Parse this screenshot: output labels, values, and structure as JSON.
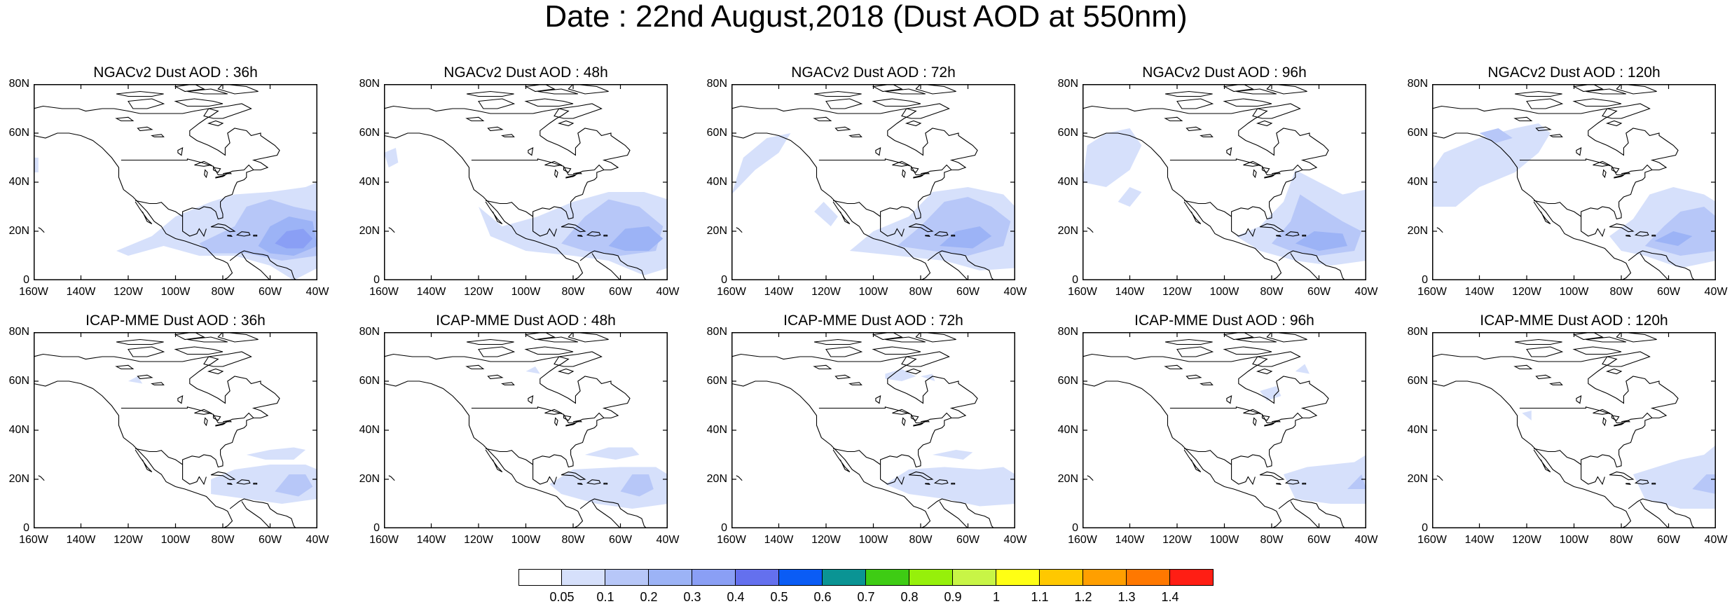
{
  "title": "Date : 22nd August,2018 (Dust AOD at 550nm)",
  "panels": [
    {
      "title": "NGACv2 Dust AOD : 36h"
    },
    {
      "title": "NGACv2 Dust AOD : 48h"
    },
    {
      "title": "NGACv2 Dust AOD : 72h"
    },
    {
      "title": "NGACv2 Dust AOD : 96h"
    },
    {
      "title": "NGACv2 Dust AOD : 120h"
    },
    {
      "title": "ICAP-MME Dust AOD : 36h"
    },
    {
      "title": "ICAP-MME Dust AOD : 48h"
    },
    {
      "title": "ICAP-MME Dust AOD : 72h"
    },
    {
      "title": "ICAP-MME Dust AOD : 96h"
    },
    {
      "title": "ICAP-MME Dust AOD : 120h"
    }
  ],
  "lat_ticks": [
    "80N",
    "60N",
    "40N",
    "20N",
    "0"
  ],
  "lon_ticks": [
    "160W",
    "140W",
    "120W",
    "100W",
    "80W",
    "60W",
    "40W"
  ],
  "colorbar": {
    "labels": [
      "0.05",
      "0.1",
      "0.2",
      "0.3",
      "0.4",
      "0.5",
      "0.6",
      "0.7",
      "0.8",
      "0.9",
      "1",
      "1.1",
      "1.2",
      "1.3",
      "1.4"
    ],
    "colors": [
      "#ffffff",
      "#d6e0fb",
      "#b7c7f8",
      "#9cb3f6",
      "#8a9ff5",
      "#6470ee",
      "#0a5cf5",
      "#0a9494",
      "#3ecc14",
      "#96f00a",
      "#c8f546",
      "#ffff14",
      "#ffc800",
      "#ff9f00",
      "#ff7800",
      "#ff1e14"
    ]
  }
}
